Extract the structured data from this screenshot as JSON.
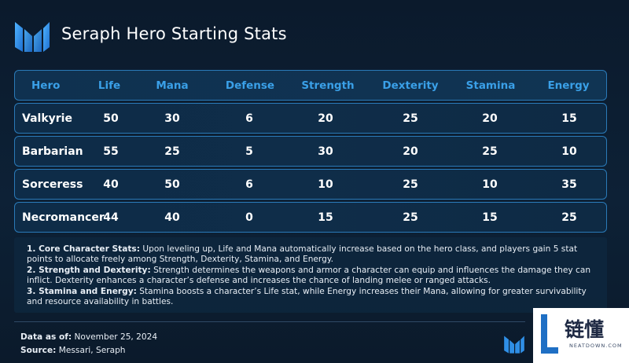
{
  "title": "Seraph Hero Starting Stats",
  "colors": {
    "background": "#0d2136",
    "accent": "#3aa0e8",
    "row_border": "#2a7ab8",
    "row_fill": "#0f2d49"
  },
  "logo_icon": "seraph-m-logo-icon",
  "table": {
    "headers": [
      "Hero",
      "Life",
      "Mana",
      "Defense",
      "Strength",
      "Dexterity",
      "Stamina",
      "Energy"
    ],
    "rows": [
      {
        "hero": "Valkyrie",
        "life": "50",
        "mana": "30",
        "defense": "6",
        "strength": "20",
        "dexterity": "25",
        "stamina": "20",
        "energy": "15"
      },
      {
        "hero": "Barbarian",
        "life": "55",
        "mana": "25",
        "defense": "5",
        "strength": "30",
        "dexterity": "20",
        "stamina": "25",
        "energy": "10"
      },
      {
        "hero": "Sorceress",
        "life": "40",
        "mana": "50",
        "defense": "6",
        "strength": "10",
        "dexterity": "25",
        "stamina": "10",
        "energy": "35"
      },
      {
        "hero": "Necromancer",
        "life": "44",
        "mana": "40",
        "defense": "0",
        "strength": "15",
        "dexterity": "25",
        "stamina": "15",
        "energy": "25"
      }
    ]
  },
  "notes": [
    {
      "heading": "1. Core Character Stats:",
      "text": " Upon leveling up, Life and Mana automatically increase based on the hero class, and players gain 5 stat points to allocate freely among Strength, Dexterity, Stamina, and Energy."
    },
    {
      "heading": "2. Strength and Dexterity:",
      "text": " Strength determines the weapons and armor a character can equip and influences the damage they can inflict. Dexterity enhances a character’s defense and increases the chance of landing melee or ranged attacks."
    },
    {
      "heading": "3. Stamina and Energy:",
      "text": " Stamina boosts a character’s Life stat, while Energy increases their Mana, allowing for greater survivability and resource availability in battles."
    }
  ],
  "footer": {
    "date_label": "Data as of:",
    "date_value": " November 25, 2024",
    "source_label": "Source:",
    "source_value": " Messari, Seraph"
  },
  "watermark": {
    "text": "链懂",
    "subtext": "NEATDOWN.COM"
  }
}
